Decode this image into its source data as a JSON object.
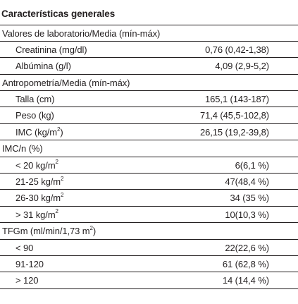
{
  "title": "Características generales",
  "sections": [
    {
      "label": "Valores de laboratorio/Media (mín-máx)",
      "rows": [
        {
          "label": "Creatinina (mg/dl)",
          "value": "0,76 (0,42-1,38)"
        },
        {
          "label": "Albúmina (g/l)",
          "value": "4,09 (2,9-5,2)"
        }
      ]
    },
    {
      "label": "Antropometría/Media (mín-máx)",
      "rows": [
        {
          "label": "Talla (cm)",
          "value": "165,1 (143-187)"
        },
        {
          "label": "Peso (kg)",
          "value": "71,4 (45,5-102,8)"
        },
        {
          "label": "IMC (kg/m",
          "sup": "2",
          "label_after": ")",
          "value": "26,15 (19,2-39,8)"
        }
      ]
    },
    {
      "label": "IMC/n (%)",
      "rows": [
        {
          "label": "< 20 kg/m",
          "sup": "2",
          "value": "6(6,1 %)"
        },
        {
          "label": "21-25 kg/m",
          "sup": "2",
          "value": "47(48,4 %)"
        },
        {
          "label": "26-30 kg/m",
          "sup": "2",
          "value": "34 (35 %)"
        },
        {
          "label": "> 31 kg/m",
          "sup": "2",
          "value": "10(10,3 %)"
        }
      ]
    },
    {
      "label": "TFGm (ml/min/1,73 m",
      "sup": "2",
      "label_after": ")",
      "rows": [
        {
          "label": "< 90",
          "value": "22(22,6 %)"
        },
        {
          "label": "91-120",
          "value": "61 (62,8 %)"
        },
        {
          "label": "> 120",
          "value": "14 (14,4 %)"
        }
      ]
    }
  ]
}
